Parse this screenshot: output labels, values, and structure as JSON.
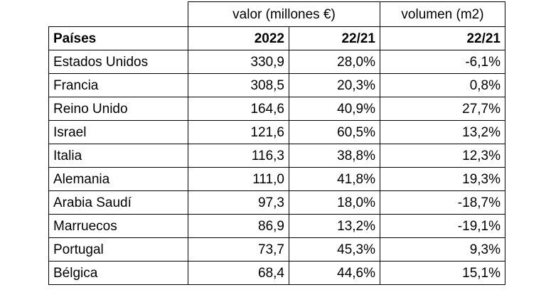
{
  "header": {
    "group_valor": "valor (millones €)",
    "group_volumen": "volumen (m2)",
    "col_country": "Países",
    "col_2022": "2022",
    "col_valor_change": "22/21",
    "col_volumen_change": "22/21"
  },
  "rows": [
    {
      "country": "Estados Unidos",
      "value_2022": "330,9",
      "valor_change": "28,0%",
      "volumen_change": "-6,1%"
    },
    {
      "country": "Francia",
      "value_2022": "308,5",
      "valor_change": "20,3%",
      "volumen_change": "0,8%"
    },
    {
      "country": "Reino Unido",
      "value_2022": "164,6",
      "valor_change": "40,9%",
      "volumen_change": "27,7%"
    },
    {
      "country": "Israel",
      "value_2022": "121,6",
      "valor_change": "60,5%",
      "volumen_change": "13,2%"
    },
    {
      "country": "Italia",
      "value_2022": "116,3",
      "valor_change": "38,8%",
      "volumen_change": "12,3%"
    },
    {
      "country": "Alemania",
      "value_2022": "111,0",
      "valor_change": "41,8%",
      "volumen_change": "19,3%"
    },
    {
      "country": "Arabia Saudí",
      "value_2022": "97,3",
      "valor_change": "18,0%",
      "volumen_change": "-18,7%"
    },
    {
      "country": "Marruecos",
      "value_2022": "86,9",
      "valor_change": "13,2%",
      "volumen_change": "-19,1%"
    },
    {
      "country": "Portugal",
      "value_2022": "73,7",
      "valor_change": "45,3%",
      "volumen_change": "9,3%"
    },
    {
      "country": "Bélgica",
      "value_2022": "68,4",
      "valor_change": "44,6%",
      "volumen_change": "15,1%"
    }
  ]
}
